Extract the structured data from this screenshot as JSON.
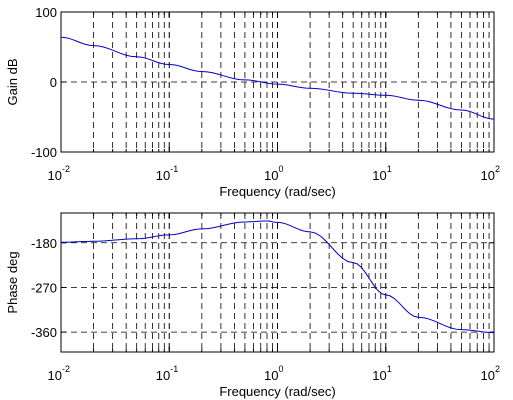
{
  "chart_data": [
    {
      "type": "line",
      "subplot": "gain",
      "xlabel": "Frequency (rad/sec)",
      "ylabel": "Gain dB",
      "x_scale": "log",
      "xlim": [
        0.01,
        100
      ],
      "ylim": [
        -100,
        100
      ],
      "x_tick_labels": [
        {
          "base": "10",
          "exp": "-2"
        },
        {
          "base": "10",
          "exp": "-1"
        },
        {
          "base": "10",
          "exp": "0"
        },
        {
          "base": "10",
          "exp": "1"
        },
        {
          "base": "10",
          "exp": "2"
        }
      ],
      "y_ticks": [
        -100,
        0,
        100
      ],
      "y_tick_labels": [
        "-100",
        "0",
        "100"
      ],
      "grid": true,
      "line_color": "#0000cc",
      "series": [
        {
          "x": [
            0.01,
            0.02,
            0.05,
            0.1,
            0.2,
            0.5,
            1,
            2,
            5,
            10,
            20,
            50,
            100
          ],
          "y": [
            64,
            52,
            36,
            25,
            15,
            3,
            -3,
            -9,
            -16,
            -19,
            -26,
            -40,
            -53
          ]
        }
      ]
    },
    {
      "type": "line",
      "subplot": "phase",
      "xlabel": "Frequency (rad/sec)",
      "ylabel": "Phase deg",
      "x_scale": "log",
      "xlim": [
        0.01,
        100
      ],
      "ylim": [
        -400,
        -120
      ],
      "x_tick_labels": [
        {
          "base": "10",
          "exp": "-2"
        },
        {
          "base": "10",
          "exp": "-1"
        },
        {
          "base": "10",
          "exp": "0"
        },
        {
          "base": "10",
          "exp": "1"
        },
        {
          "base": "10",
          "exp": "2"
        }
      ],
      "y_ticks": [
        -360,
        -270,
        -180
      ],
      "y_tick_labels": [
        "-360",
        "-270",
        "-180"
      ],
      "grid": true,
      "line_color": "#0000cc",
      "series": [
        {
          "x": [
            0.01,
            0.02,
            0.05,
            0.1,
            0.2,
            0.5,
            0.8,
            1,
            2,
            5,
            10,
            20,
            50,
            100
          ],
          "y": [
            -179,
            -177,
            -172,
            -164,
            -152,
            -138,
            -136,
            -139,
            -158,
            -220,
            -285,
            -330,
            -355,
            -361
          ]
        }
      ]
    }
  ]
}
